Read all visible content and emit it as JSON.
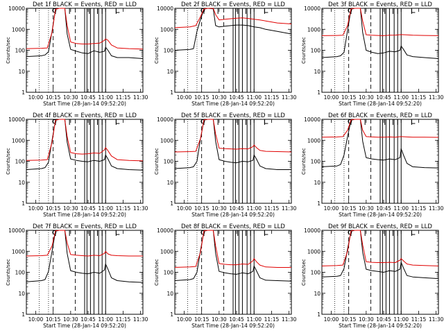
{
  "figure": {
    "xlabel": "Start Time (28-Jan-14 09:52:20)",
    "ylabel": "Counts/sec",
    "xtick_labels": [
      "10:00",
      "10:15",
      "10:30",
      "10:45",
      "11:00",
      "11:15",
      "11:30"
    ],
    "ytick_labels": [
      "1",
      "10",
      "100",
      "1000",
      "10000"
    ],
    "colors": {
      "events": "#000000",
      "lld": "#e00000",
      "axes": "#000000",
      "background": "#ffffff"
    }
  },
  "chart_data": [
    {
      "title": "Det 1f BLACK = Events, RED = LLD",
      "type": "line",
      "scale": "log",
      "xlim": [
        "09:52",
        "11:32"
      ],
      "ylim": [
        1,
        10000
      ],
      "series": [
        {
          "name": "Events",
          "x": [
            "09:52",
            "10:05",
            "10:08",
            "10:11",
            "10:14",
            "10:17",
            "10:20",
            "10:25",
            "10:27",
            "10:30",
            "10:35",
            "10:40",
            "10:45",
            "10:50",
            "10:55",
            "10:59",
            "11:00",
            "11:02",
            "11:05",
            "11:10",
            "11:20",
            "11:32"
          ],
          "values": [
            50,
            55,
            60,
            85,
            800,
            9000,
            10000,
            10000,
            600,
            110,
            90,
            75,
            70,
            95,
            80,
            90,
            140,
            100,
            55,
            45,
            45,
            40
          ]
        },
        {
          "name": "LLD",
          "x": [
            "09:52",
            "10:05",
            "10:10",
            "10:14",
            "10:17",
            "10:20",
            "10:25",
            "10:27",
            "10:30",
            "10:35",
            "10:40",
            "10:45",
            "10:50",
            "10:55",
            "10:59",
            "11:00",
            "11:02",
            "11:05",
            "11:10",
            "11:20",
            "11:32"
          ],
          "values": [
            120,
            125,
            130,
            700,
            9000,
            10000,
            10000,
            1500,
            250,
            210,
            200,
            200,
            210,
            220,
            300,
            350,
            300,
            180,
            130,
            120,
            115
          ]
        }
      ]
    },
    {
      "title": "Det 2f BLACK = Events, RED = LLD",
      "type": "line",
      "scale": "log",
      "xlim": [
        "09:52",
        "11:32"
      ],
      "ylim": [
        1,
        10000
      ],
      "series": [
        {
          "name": "Events",
          "x": [
            "09:52",
            "10:05",
            "10:08",
            "10:11",
            "10:14",
            "10:17",
            "10:20",
            "10:25",
            "10:27",
            "10:30",
            "10:35",
            "10:40",
            "10:45",
            "10:50",
            "10:55",
            "11:00",
            "11:05",
            "11:10",
            "11:20",
            "11:32"
          ],
          "values": [
            100,
            110,
            120,
            800,
            3000,
            9000,
            10000,
            9500,
            1500,
            1300,
            1400,
            1500,
            1600,
            1600,
            1500,
            1300,
            1200,
            1000,
            800,
            600
          ]
        },
        {
          "name": "LLD",
          "x": [
            "09:52",
            "10:05",
            "10:10",
            "10:14",
            "10:17",
            "10:20",
            "10:25",
            "10:27",
            "10:30",
            "10:35",
            "10:40",
            "10:45",
            "10:50",
            "10:55",
            "11:00",
            "11:05",
            "11:10",
            "11:20",
            "11:32"
          ],
          "values": [
            1200,
            1300,
            1500,
            4000,
            9500,
            10000,
            10000,
            5000,
            2800,
            3000,
            3200,
            3400,
            3500,
            3300,
            3000,
            2800,
            2500,
            2000,
            1800
          ]
        }
      ]
    },
    {
      "title": "Det 3f BLACK = Events, RED = LLD",
      "type": "line",
      "scale": "log",
      "xlim": [
        "09:52",
        "11:32"
      ],
      "ylim": [
        1,
        10000
      ],
      "series": [
        {
          "name": "Events",
          "x": [
            "09:52",
            "10:05",
            "10:08",
            "10:11",
            "10:14",
            "10:17",
            "10:20",
            "10:25",
            "10:27",
            "10:30",
            "10:35",
            "10:40",
            "10:45",
            "10:50",
            "10:55",
            "10:59",
            "11:00",
            "11:02",
            "11:05",
            "11:10",
            "11:20",
            "11:32"
          ],
          "values": [
            45,
            50,
            55,
            80,
            900,
            9000,
            10000,
            10000,
            700,
            100,
            80,
            70,
            75,
            90,
            85,
            100,
            160,
            110,
            60,
            50,
            45,
            40
          ]
        },
        {
          "name": "LLD",
          "x": [
            "09:52",
            "10:05",
            "10:10",
            "10:14",
            "10:17",
            "10:20",
            "10:25",
            "10:27",
            "10:30",
            "10:35",
            "10:40",
            "10:45",
            "10:50",
            "10:55",
            "11:00",
            "11:05",
            "11:10",
            "11:20",
            "11:32"
          ],
          "values": [
            500,
            510,
            520,
            1500,
            9500,
            10000,
            10000,
            2500,
            550,
            520,
            510,
            500,
            520,
            530,
            560,
            540,
            520,
            510,
            500
          ]
        }
      ]
    },
    {
      "title": "Det 4f BLACK = Events, RED = LLD",
      "type": "line",
      "scale": "log",
      "xlim": [
        "09:52",
        "11:32"
      ],
      "ylim": [
        1,
        10000
      ],
      "series": [
        {
          "name": "Events",
          "x": [
            "09:52",
            "10:05",
            "10:08",
            "10:11",
            "10:14",
            "10:17",
            "10:20",
            "10:25",
            "10:27",
            "10:30",
            "10:35",
            "10:40",
            "10:45",
            "10:50",
            "10:55",
            "10:59",
            "11:00",
            "11:02",
            "11:05",
            "11:10",
            "11:20",
            "11:32"
          ],
          "values": [
            40,
            45,
            50,
            90,
            1000,
            9000,
            10000,
            10000,
            800,
            130,
            110,
            100,
            95,
            110,
            100,
            120,
            200,
            130,
            60,
            45,
            40,
            38
          ]
        },
        {
          "name": "LLD",
          "x": [
            "09:52",
            "10:05",
            "10:10",
            "10:14",
            "10:17",
            "10:20",
            "10:25",
            "10:27",
            "10:30",
            "10:35",
            "10:40",
            "10:45",
            "10:50",
            "10:55",
            "10:59",
            "11:00",
            "11:02",
            "11:05",
            "11:10",
            "11:20",
            "11:32"
          ],
          "values": [
            110,
            115,
            120,
            800,
            9000,
            10000,
            10000,
            1500,
            260,
            230,
            220,
            230,
            250,
            240,
            350,
            450,
            320,
            180,
            120,
            110,
            105
          ]
        }
      ]
    },
    {
      "title": "Det 5f BLACK = Events, RED = LLD",
      "type": "line",
      "scale": "log",
      "xlim": [
        "09:52",
        "11:32"
      ],
      "ylim": [
        1,
        10000
      ],
      "series": [
        {
          "name": "Events",
          "x": [
            "09:52",
            "10:05",
            "10:08",
            "10:11",
            "10:14",
            "10:17",
            "10:20",
            "10:25",
            "10:27",
            "10:30",
            "10:35",
            "10:40",
            "10:45",
            "10:50",
            "10:55",
            "10:59",
            "11:00",
            "11:02",
            "11:05",
            "11:10",
            "11:20",
            "11:32"
          ],
          "values": [
            45,
            50,
            55,
            100,
            1200,
            9000,
            10000,
            10000,
            900,
            120,
            100,
            90,
            85,
            100,
            95,
            110,
            200,
            130,
            60,
            45,
            40,
            40
          ]
        },
        {
          "name": "LLD",
          "x": [
            "09:52",
            "10:05",
            "10:10",
            "10:14",
            "10:17",
            "10:20",
            "10:25",
            "10:27",
            "10:30",
            "10:35",
            "10:40",
            "10:45",
            "10:50",
            "10:55",
            "10:59",
            "11:00",
            "11:02",
            "11:05",
            "11:10",
            "11:20",
            "11:32"
          ],
          "values": [
            280,
            290,
            300,
            1200,
            9500,
            10000,
            10000,
            2000,
            420,
            400,
            390,
            380,
            400,
            390,
            500,
            600,
            450,
            330,
            300,
            290,
            280
          ]
        }
      ]
    },
    {
      "title": "Det 6f BLACK = Events, RED = LLD",
      "type": "line",
      "scale": "log",
      "xlim": [
        "09:52",
        "11:32"
      ],
      "ylim": [
        1,
        10000
      ],
      "series": [
        {
          "name": "Events",
          "x": [
            "09:52",
            "10:05",
            "10:08",
            "10:11",
            "10:14",
            "10:17",
            "10:20",
            "10:25",
            "10:27",
            "10:30",
            "10:35",
            "10:40",
            "10:45",
            "10:50",
            "10:55",
            "10:59",
            "11:00",
            "11:02",
            "11:05",
            "11:10",
            "11:20",
            "11:32"
          ],
          "values": [
            55,
            60,
            70,
            200,
            1500,
            9000,
            10000,
            10000,
            900,
            150,
            130,
            120,
            115,
            130,
            120,
            150,
            400,
            200,
            80,
            55,
            50,
            48
          ]
        },
        {
          "name": "LLD",
          "x": [
            "09:52",
            "10:05",
            "10:10",
            "10:14",
            "10:17",
            "10:20",
            "10:25",
            "10:27",
            "10:30",
            "10:35",
            "10:40",
            "10:45",
            "10:50",
            "10:55",
            "11:00",
            "11:05",
            "11:10",
            "11:20",
            "11:32"
          ],
          "values": [
            1400,
            1450,
            1500,
            3000,
            9500,
            10000,
            10000,
            3000,
            1500,
            1450,
            1400,
            1400,
            1450,
            1400,
            1500,
            1450,
            1400,
            1400,
            1380
          ]
        }
      ]
    },
    {
      "title": "Det 7f BLACK = Events, RED = LLD",
      "type": "line",
      "scale": "log",
      "xlim": [
        "09:52",
        "11:32"
      ],
      "ylim": [
        1,
        10000
      ],
      "series": [
        {
          "name": "Events",
          "x": [
            "09:52",
            "10:05",
            "10:08",
            "10:11",
            "10:14",
            "10:17",
            "10:20",
            "10:25",
            "10:27",
            "10:30",
            "10:35",
            "10:40",
            "10:45",
            "10:50",
            "10:55",
            "10:59",
            "11:00",
            "11:02",
            "11:05",
            "11:10",
            "11:20",
            "11:32"
          ],
          "values": [
            35,
            40,
            45,
            110,
            1000,
            9000,
            10000,
            10000,
            800,
            120,
            100,
            90,
            85,
            100,
            90,
            130,
            250,
            140,
            55,
            40,
            35,
            33
          ]
        },
        {
          "name": "LLD",
          "x": [
            "09:52",
            "10:05",
            "10:10",
            "10:14",
            "10:17",
            "10:20",
            "10:25",
            "10:27",
            "10:30",
            "10:35",
            "10:40",
            "10:45",
            "10:50",
            "10:55",
            "10:59",
            "11:00",
            "11:02",
            "11:05",
            "11:10",
            "11:20",
            "11:32"
          ],
          "values": [
            600,
            620,
            650,
            1800,
            9500,
            10000,
            10000,
            2500,
            700,
            650,
            620,
            600,
            650,
            620,
            800,
            1000,
            750,
            650,
            620,
            600,
            600
          ]
        }
      ]
    },
    {
      "title": "Det 8f BLACK = Events, RED = LLD",
      "type": "line",
      "scale": "log",
      "xlim": [
        "09:52",
        "11:32"
      ],
      "ylim": [
        1,
        10000
      ],
      "series": [
        {
          "name": "Events",
          "x": [
            "09:52",
            "10:05",
            "10:08",
            "10:11",
            "10:14",
            "10:17",
            "10:20",
            "10:25",
            "10:27",
            "10:30",
            "10:35",
            "10:40",
            "10:45",
            "10:50",
            "10:55",
            "10:59",
            "11:00",
            "11:02",
            "11:05",
            "11:10",
            "11:20",
            "11:32"
          ],
          "values": [
            40,
            45,
            50,
            100,
            1100,
            9000,
            10000,
            10000,
            800,
            110,
            95,
            85,
            80,
            95,
            85,
            110,
            200,
            120,
            55,
            42,
            40,
            38
          ]
        },
        {
          "name": "LLD",
          "x": [
            "09:52",
            "10:05",
            "10:10",
            "10:14",
            "10:17",
            "10:20",
            "10:25",
            "10:27",
            "10:30",
            "10:35",
            "10:40",
            "10:45",
            "10:50",
            "10:55",
            "10:59",
            "11:00",
            "11:02",
            "11:05",
            "11:10",
            "11:20",
            "11:32"
          ],
          "values": [
            170,
            180,
            190,
            900,
            9500,
            10000,
            10000,
            1800,
            260,
            240,
            230,
            230,
            250,
            240,
            350,
            450,
            320,
            220,
            180,
            170,
            170
          ]
        }
      ]
    },
    {
      "title": "Det 9f BLACK = Events, RED = LLD",
      "type": "line",
      "scale": "log",
      "xlim": [
        "09:52",
        "11:32"
      ],
      "ylim": [
        1,
        10000
      ],
      "series": [
        {
          "name": "Events",
          "x": [
            "09:52",
            "10:05",
            "10:08",
            "10:11",
            "10:14",
            "10:17",
            "10:20",
            "10:25",
            "10:27",
            "10:30",
            "10:35",
            "10:40",
            "10:45",
            "10:50",
            "10:55",
            "10:59",
            "11:00",
            "11:02",
            "11:05",
            "11:10",
            "11:20",
            "11:32"
          ],
          "values": [
            60,
            65,
            70,
            150,
            1300,
            9000,
            10000,
            10000,
            900,
            140,
            120,
            110,
            100,
            120,
            110,
            140,
            300,
            160,
            70,
            60,
            55,
            50
          ]
        },
        {
          "name": "LLD",
          "x": [
            "09:52",
            "10:05",
            "10:10",
            "10:14",
            "10:17",
            "10:20",
            "10:25",
            "10:27",
            "10:30",
            "10:35",
            "10:40",
            "10:45",
            "10:50",
            "10:55",
            "10:59",
            "11:00",
            "11:02",
            "11:05",
            "11:10",
            "11:20",
            "11:32"
          ],
          "values": [
            200,
            210,
            220,
            1000,
            9500,
            10000,
            10000,
            2000,
            320,
            300,
            290,
            290,
            300,
            290,
            380,
            450,
            350,
            250,
            220,
            210,
            200
          ]
        }
      ]
    }
  ]
}
